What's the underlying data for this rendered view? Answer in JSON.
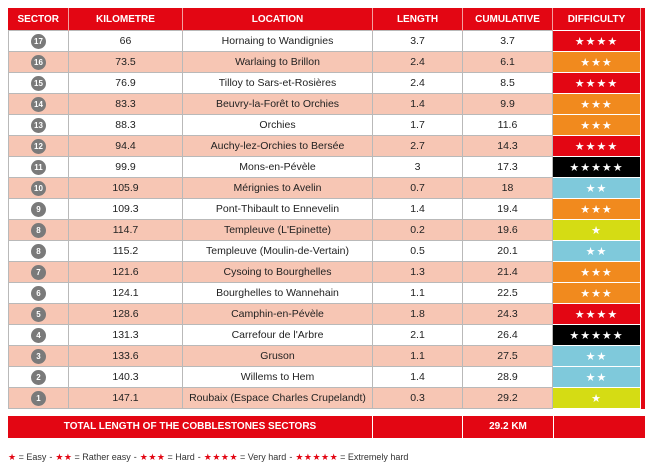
{
  "table": {
    "columns": [
      "SECTOR",
      "KILOMETRE",
      "LOCATION",
      "LENGTH",
      "CUMULATIVE",
      "DIFFICULTY"
    ],
    "rows": [
      {
        "sector": 17,
        "kilometre": 66,
        "location": "Hornaing to Wandignies",
        "length": 3.7,
        "cumulative": 3.7,
        "difficulty": 4
      },
      {
        "sector": 16,
        "kilometre": 73.5,
        "location": "Warlaing to Brillon",
        "length": 2.4,
        "cumulative": 6.1,
        "difficulty": 3
      },
      {
        "sector": 15,
        "kilometre": 76.9,
        "location": "Tilloy to Sars-et-Rosières",
        "length": 2.4,
        "cumulative": 8.5,
        "difficulty": 4
      },
      {
        "sector": 14,
        "kilometre": 83.3,
        "location": "Beuvry-la-Forêt to Orchies",
        "length": 1.4,
        "cumulative": 9.9,
        "difficulty": 3
      },
      {
        "sector": 13,
        "kilometre": 88.3,
        "location": "Orchies",
        "length": 1.7,
        "cumulative": 11.6,
        "difficulty": 3
      },
      {
        "sector": 12,
        "kilometre": 94.4,
        "location": "Auchy-lez-Orchies to Bersée",
        "length": 2.7,
        "cumulative": 14.3,
        "difficulty": 4
      },
      {
        "sector": 11,
        "kilometre": 99.9,
        "location": "Mons-en-Pévèle",
        "length": 3,
        "cumulative": 17.3,
        "difficulty": 5
      },
      {
        "sector": 10,
        "kilometre": 105.9,
        "location": "Mérignies to Avelin",
        "length": 0.7,
        "cumulative": 18,
        "difficulty": 2
      },
      {
        "sector": 9,
        "kilometre": 109.3,
        "location": "Pont-Thibault to Ennevelin",
        "length": 1.4,
        "cumulative": 19.4,
        "difficulty": 3
      },
      {
        "sector": 8,
        "kilometre": 114.7,
        "location": "Templeuve (L'Epinette)",
        "length": 0.2,
        "cumulative": 19.6,
        "difficulty": 1
      },
      {
        "sector": 8,
        "kilometre": 115.2,
        "location": "Templeuve (Moulin-de-Vertain)",
        "length": 0.5,
        "cumulative": 20.1,
        "difficulty": 2
      },
      {
        "sector": 7,
        "kilometre": 121.6,
        "location": "Cysoing to Bourghelles",
        "length": 1.3,
        "cumulative": 21.4,
        "difficulty": 3
      },
      {
        "sector": 6,
        "kilometre": 124.1,
        "location": "Bourghelles to Wannehain",
        "length": 1.1,
        "cumulative": 22.5,
        "difficulty": 3
      },
      {
        "sector": 5,
        "kilometre": 128.6,
        "location": "Camphin-en-Pévèle",
        "length": 1.8,
        "cumulative": 24.3,
        "difficulty": 4
      },
      {
        "sector": 4,
        "kilometre": 131.3,
        "location": "Carrefour de l'Arbre",
        "length": 2.1,
        "cumulative": 26.4,
        "difficulty": 5
      },
      {
        "sector": 3,
        "kilometre": 133.6,
        "location": "Gruson",
        "length": 1.1,
        "cumulative": 27.5,
        "difficulty": 2
      },
      {
        "sector": 2,
        "kilometre": 140.3,
        "location": "Willems to Hem",
        "length": 1.4,
        "cumulative": 28.9,
        "difficulty": 2
      },
      {
        "sector": 1,
        "kilometre": 147.1,
        "location": "Roubaix (Espace Charles Crupelandt)",
        "length": 0.3,
        "cumulative": 29.2,
        "difficulty": 1
      }
    ],
    "difficulty_colors": [
      "#d5dc14",
      "#7fc9db",
      "#f18a1e",
      "#e30613",
      "#000000"
    ],
    "total": {
      "label": "TOTAL LENGTH OF THE COBBLESTONES SECTORS",
      "value": "29.2 KM"
    }
  },
  "legend": {
    "star_color": "#e30613",
    "separator": "-",
    "items": [
      {
        "stars": 1,
        "label": "= Easy"
      },
      {
        "stars": 2,
        "label": "= Rather easy"
      },
      {
        "stars": 3,
        "label": "= Hard"
      },
      {
        "stars": 4,
        "label": "= Very hard"
      },
      {
        "stars": 5,
        "label": "= Extremely hard"
      }
    ]
  }
}
